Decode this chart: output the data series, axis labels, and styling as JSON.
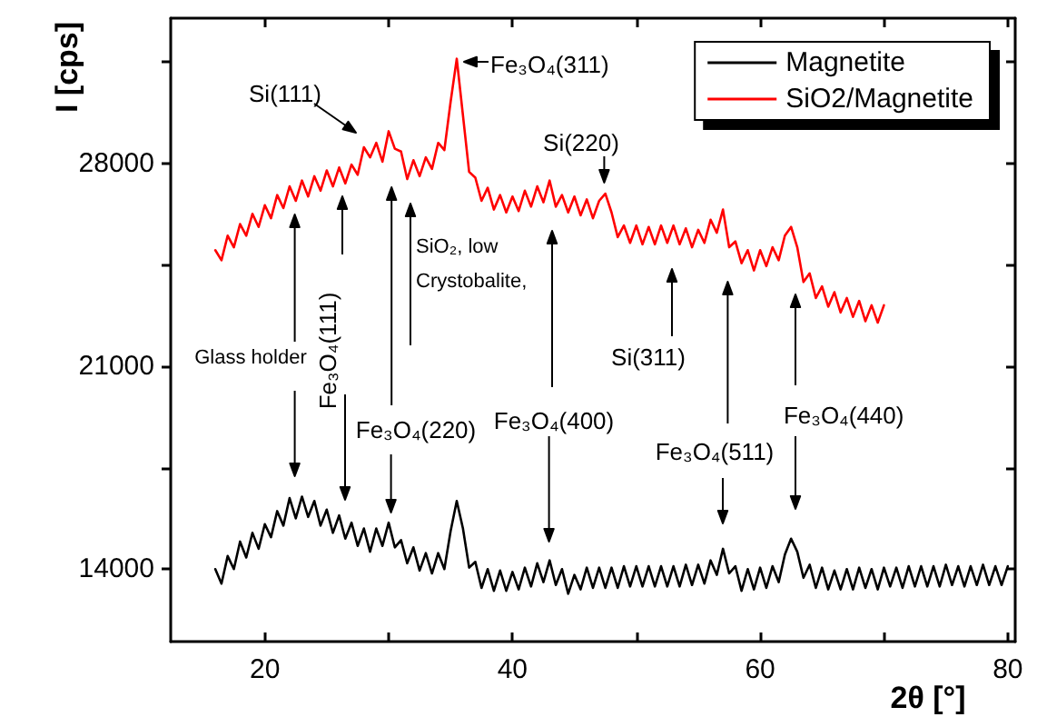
{
  "chart_data": {
    "type": "line",
    "xlabel": "2θ [°]",
    "ylabel": "I [cps]",
    "xlim": [
      12.4,
      80.6
    ],
    "xticks": [
      20,
      {
        "value": 30,
        "label": null
      },
      40,
      {
        "value": 50,
        "label": null
      },
      60,
      {
        "value": 70,
        "label": null
      },
      80
    ],
    "ylim": [
      11500,
      33000
    ],
    "yticks": [
      14000,
      {
        "value": 17500,
        "label": null
      },
      21000,
      {
        "value": 24500,
        "label": null
      },
      28000,
      {
        "value": 31500,
        "label": null
      }
    ],
    "legend": "top right",
    "series": [
      {
        "name": "Magnetite",
        "color": "#000000",
        "x": [
          16,
          16.5,
          17,
          17.5,
          18,
          18.5,
          19,
          19.5,
          20,
          20.5,
          21,
          21.5,
          22,
          22.5,
          23,
          23.5,
          24,
          24.5,
          25,
          25.5,
          26,
          26.5,
          27,
          27.5,
          28,
          28.5,
          29,
          29.5,
          30,
          30.5,
          31,
          31.5,
          32,
          32.5,
          33,
          33.5,
          34,
          34.5,
          35,
          35.5,
          36,
          36.5,
          37,
          37.5,
          38,
          38.5,
          39,
          39.5,
          40,
          40.5,
          41,
          41.5,
          42,
          42.5,
          43,
          43.5,
          44,
          44.5,
          45,
          45.5,
          46,
          46.5,
          47,
          47.5,
          48,
          48.5,
          49,
          49.5,
          50,
          50.5,
          51,
          51.5,
          52,
          52.5,
          53,
          53.5,
          54,
          54.5,
          55,
          55.5,
          56,
          56.5,
          57,
          57.5,
          58,
          58.5,
          59,
          59.5,
          60,
          60.5,
          61,
          61.5,
          62,
          62.5,
          63,
          63.5,
          64,
          64.5,
          65,
          65.5,
          66,
          66.5,
          67,
          67.5,
          68,
          68.5,
          69,
          69.5,
          70,
          70.5,
          71,
          71.5,
          72,
          72.5,
          73,
          73.5,
          74,
          74.5,
          75,
          75.5,
          76,
          76.5,
          77,
          77.5,
          78,
          78.5,
          79,
          79.5,
          80
        ],
        "values": [
          14000,
          13500,
          14450,
          14000,
          14950,
          14400,
          15250,
          14700,
          15550,
          15100,
          16000,
          15500,
          16450,
          15750,
          16500,
          15800,
          16350,
          15500,
          16050,
          15250,
          15850,
          15050,
          15600,
          14800,
          15400,
          14600,
          15400,
          14800,
          15600,
          14750,
          15000,
          14200,
          14750,
          13950,
          14550,
          13850,
          14550,
          14000,
          15300,
          16350,
          15400,
          14050,
          14250,
          13350,
          14000,
          13250,
          13950,
          13250,
          13900,
          13300,
          14050,
          13400,
          14200,
          13550,
          14300,
          13450,
          14000,
          13150,
          13800,
          13300,
          14050,
          13350,
          14050,
          13350,
          14050,
          13350,
          14100,
          13400,
          14100,
          13400,
          14100,
          13400,
          14100,
          13400,
          14100,
          13400,
          14150,
          13450,
          14150,
          13500,
          14300,
          13800,
          14700,
          13850,
          14100,
          13250,
          14000,
          13300,
          14050,
          13350,
          14100,
          13550,
          14500,
          15050,
          14600,
          13700,
          14150,
          13350,
          14050,
          13300,
          13950,
          13300,
          14000,
          13300,
          14050,
          13350,
          14000,
          13300,
          14050,
          13400,
          14050,
          13350,
          14100,
          13400,
          14100,
          13400,
          14100,
          13400,
          14150,
          13450,
          14100,
          13400,
          14100,
          13450,
          14150,
          13450,
          14100,
          13450,
          14100
        ]
      },
      {
        "name": "SiO2/Magnetite",
        "color": "#ff0000",
        "x": [
          16,
          16.5,
          17,
          17.5,
          18,
          18.5,
          19,
          19.5,
          20,
          20.5,
          21,
          21.5,
          22,
          22.5,
          23,
          23.5,
          24,
          24.5,
          25,
          25.5,
          26,
          26.5,
          27,
          27.5,
          28,
          28.5,
          29,
          29.5,
          30,
          30.5,
          31,
          31.5,
          32,
          32.5,
          33,
          33.5,
          34,
          34.5,
          35,
          35.5,
          36,
          36.5,
          37,
          37.5,
          38,
          38.5,
          39,
          39.5,
          40,
          40.5,
          41,
          41.5,
          42,
          42.5,
          43,
          43.5,
          44,
          44.5,
          45,
          45.5,
          46,
          46.5,
          47,
          47.5,
          48,
          48.5,
          49,
          49.5,
          50,
          50.5,
          51,
          51.5,
          52,
          52.5,
          53,
          53.5,
          54,
          54.5,
          55,
          55.5,
          56,
          56.5,
          57,
          57.5,
          58,
          58.5,
          59,
          59.5,
          60,
          60.5,
          61,
          61.5,
          62,
          62.5,
          63,
          63.5,
          64,
          64.5,
          65,
          65.5,
          66,
          66.5,
          67,
          67.5,
          68,
          68.5,
          69,
          69.5,
          70
        ],
        "values": [
          25000,
          24650,
          25500,
          25100,
          25900,
          25500,
          26250,
          25800,
          26550,
          26100,
          26900,
          26450,
          27200,
          26700,
          27400,
          26850,
          27550,
          27050,
          27750,
          27200,
          27850,
          27300,
          27950,
          27600,
          28550,
          28200,
          28700,
          28050,
          29100,
          28500,
          28400,
          27450,
          28100,
          27550,
          28200,
          27800,
          28700,
          28450,
          30100,
          31600,
          29650,
          27700,
          27500,
          26700,
          27150,
          26400,
          26900,
          26300,
          26850,
          26350,
          27050,
          26500,
          27200,
          26650,
          27400,
          26500,
          26900,
          26300,
          26850,
          26200,
          26750,
          26100,
          26700,
          26950,
          26300,
          25450,
          25850,
          25250,
          25850,
          25200,
          25800,
          25200,
          25850,
          25250,
          25850,
          25200,
          25750,
          25100,
          25700,
          25250,
          26050,
          25600,
          26400,
          25100,
          25300,
          24550,
          25000,
          24300,
          25000,
          24450,
          25100,
          24650,
          25500,
          25800,
          25100,
          23900,
          24200,
          23350,
          23750,
          23050,
          23550,
          22850,
          23350,
          22700,
          23250,
          22550,
          23100,
          22500,
          23100
        ]
      }
    ],
    "annotations": [
      "Si(111)",
      "Fe₃O₄(311)",
      "Si(220)",
      "Glass holder",
      "Fe₃O₄(111)",
      "Fe₃O₄(220)",
      "SiO₂, low Crystobalite,",
      "Fe₃O₄(400)",
      "Si(311)",
      "Fe₃O₄(511)",
      "Fe₃O₄(440)"
    ]
  }
}
